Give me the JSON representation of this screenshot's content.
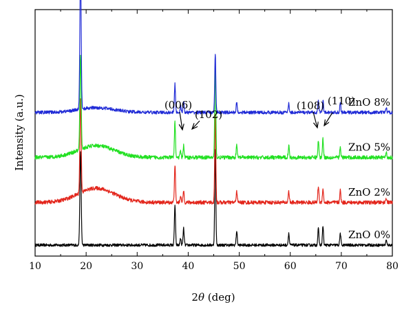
{
  "chart_data": {
    "type": "line",
    "xlabel_pre": "2",
    "xlabel_theta": "θ",
    "xlabel_post": " (deg)",
    "ylabel": "Intensity (a.u.)",
    "xlim": [
      10,
      80
    ],
    "xticks": [
      10,
      20,
      30,
      40,
      50,
      60,
      70,
      80
    ],
    "y_ticks_shown": false,
    "grid": false,
    "peaks": [
      {
        "pos": 18.9,
        "w": 0.18
      },
      {
        "pos": 37.4,
        "w": 0.15
      },
      {
        "pos": 38.5,
        "w": 0.14
      },
      {
        "pos": 39.1,
        "w": 0.15
      },
      {
        "pos": 45.3,
        "w": 0.15
      },
      {
        "pos": 49.5,
        "w": 0.15
      },
      {
        "pos": 59.7,
        "w": 0.15
      },
      {
        "pos": 65.5,
        "w": 0.15
      },
      {
        "pos": 66.4,
        "w": 0.15
      },
      {
        "pos": 69.8,
        "w": 0.15
      },
      {
        "pos": 78.8,
        "w": 0.15
      }
    ],
    "series": [
      {
        "name": "ZnO 0%",
        "color": "#000000",
        "baseline": 0.0,
        "noise": 0.006,
        "amplitudes": [
          0.4,
          0.17,
          0.03,
          0.07,
          0.4,
          0.06,
          0.05,
          0.07,
          0.08,
          0.05,
          0.02
        ],
        "hump": 0.0
      },
      {
        "name": "ZnO 2%",
        "color": "#e3261c",
        "baseline": 0.18,
        "noise": 0.008,
        "amplitudes": [
          0.4,
          0.16,
          0.03,
          0.05,
          0.38,
          0.05,
          0.05,
          0.07,
          0.06,
          0.05,
          0.02
        ],
        "hump": 0.06
      },
      {
        "name": "ZnO 5%",
        "color": "#22e022",
        "baseline": 0.37,
        "noise": 0.008,
        "amplitudes": [
          0.4,
          0.15,
          0.03,
          0.05,
          0.4,
          0.05,
          0.05,
          0.07,
          0.08,
          0.04,
          0.02
        ],
        "hump": 0.05
      },
      {
        "name": "ZnO 8%",
        "color": "#1f2ad6",
        "baseline": 0.56,
        "noise": 0.007,
        "amplitudes": [
          0.6,
          0.12,
          0.03,
          0.05,
          0.25,
          0.04,
          0.04,
          0.05,
          0.05,
          0.04,
          0.02
        ],
        "hump": 0.02
      }
    ],
    "annotations": [
      {
        "text": "(006)",
        "peak": 38.5
      },
      {
        "text": "(102)",
        "peak": 39.5
      },
      {
        "text": "(108)",
        "peak": 65.5
      },
      {
        "text": "(110)",
        "peak": 66.5
      }
    ]
  }
}
